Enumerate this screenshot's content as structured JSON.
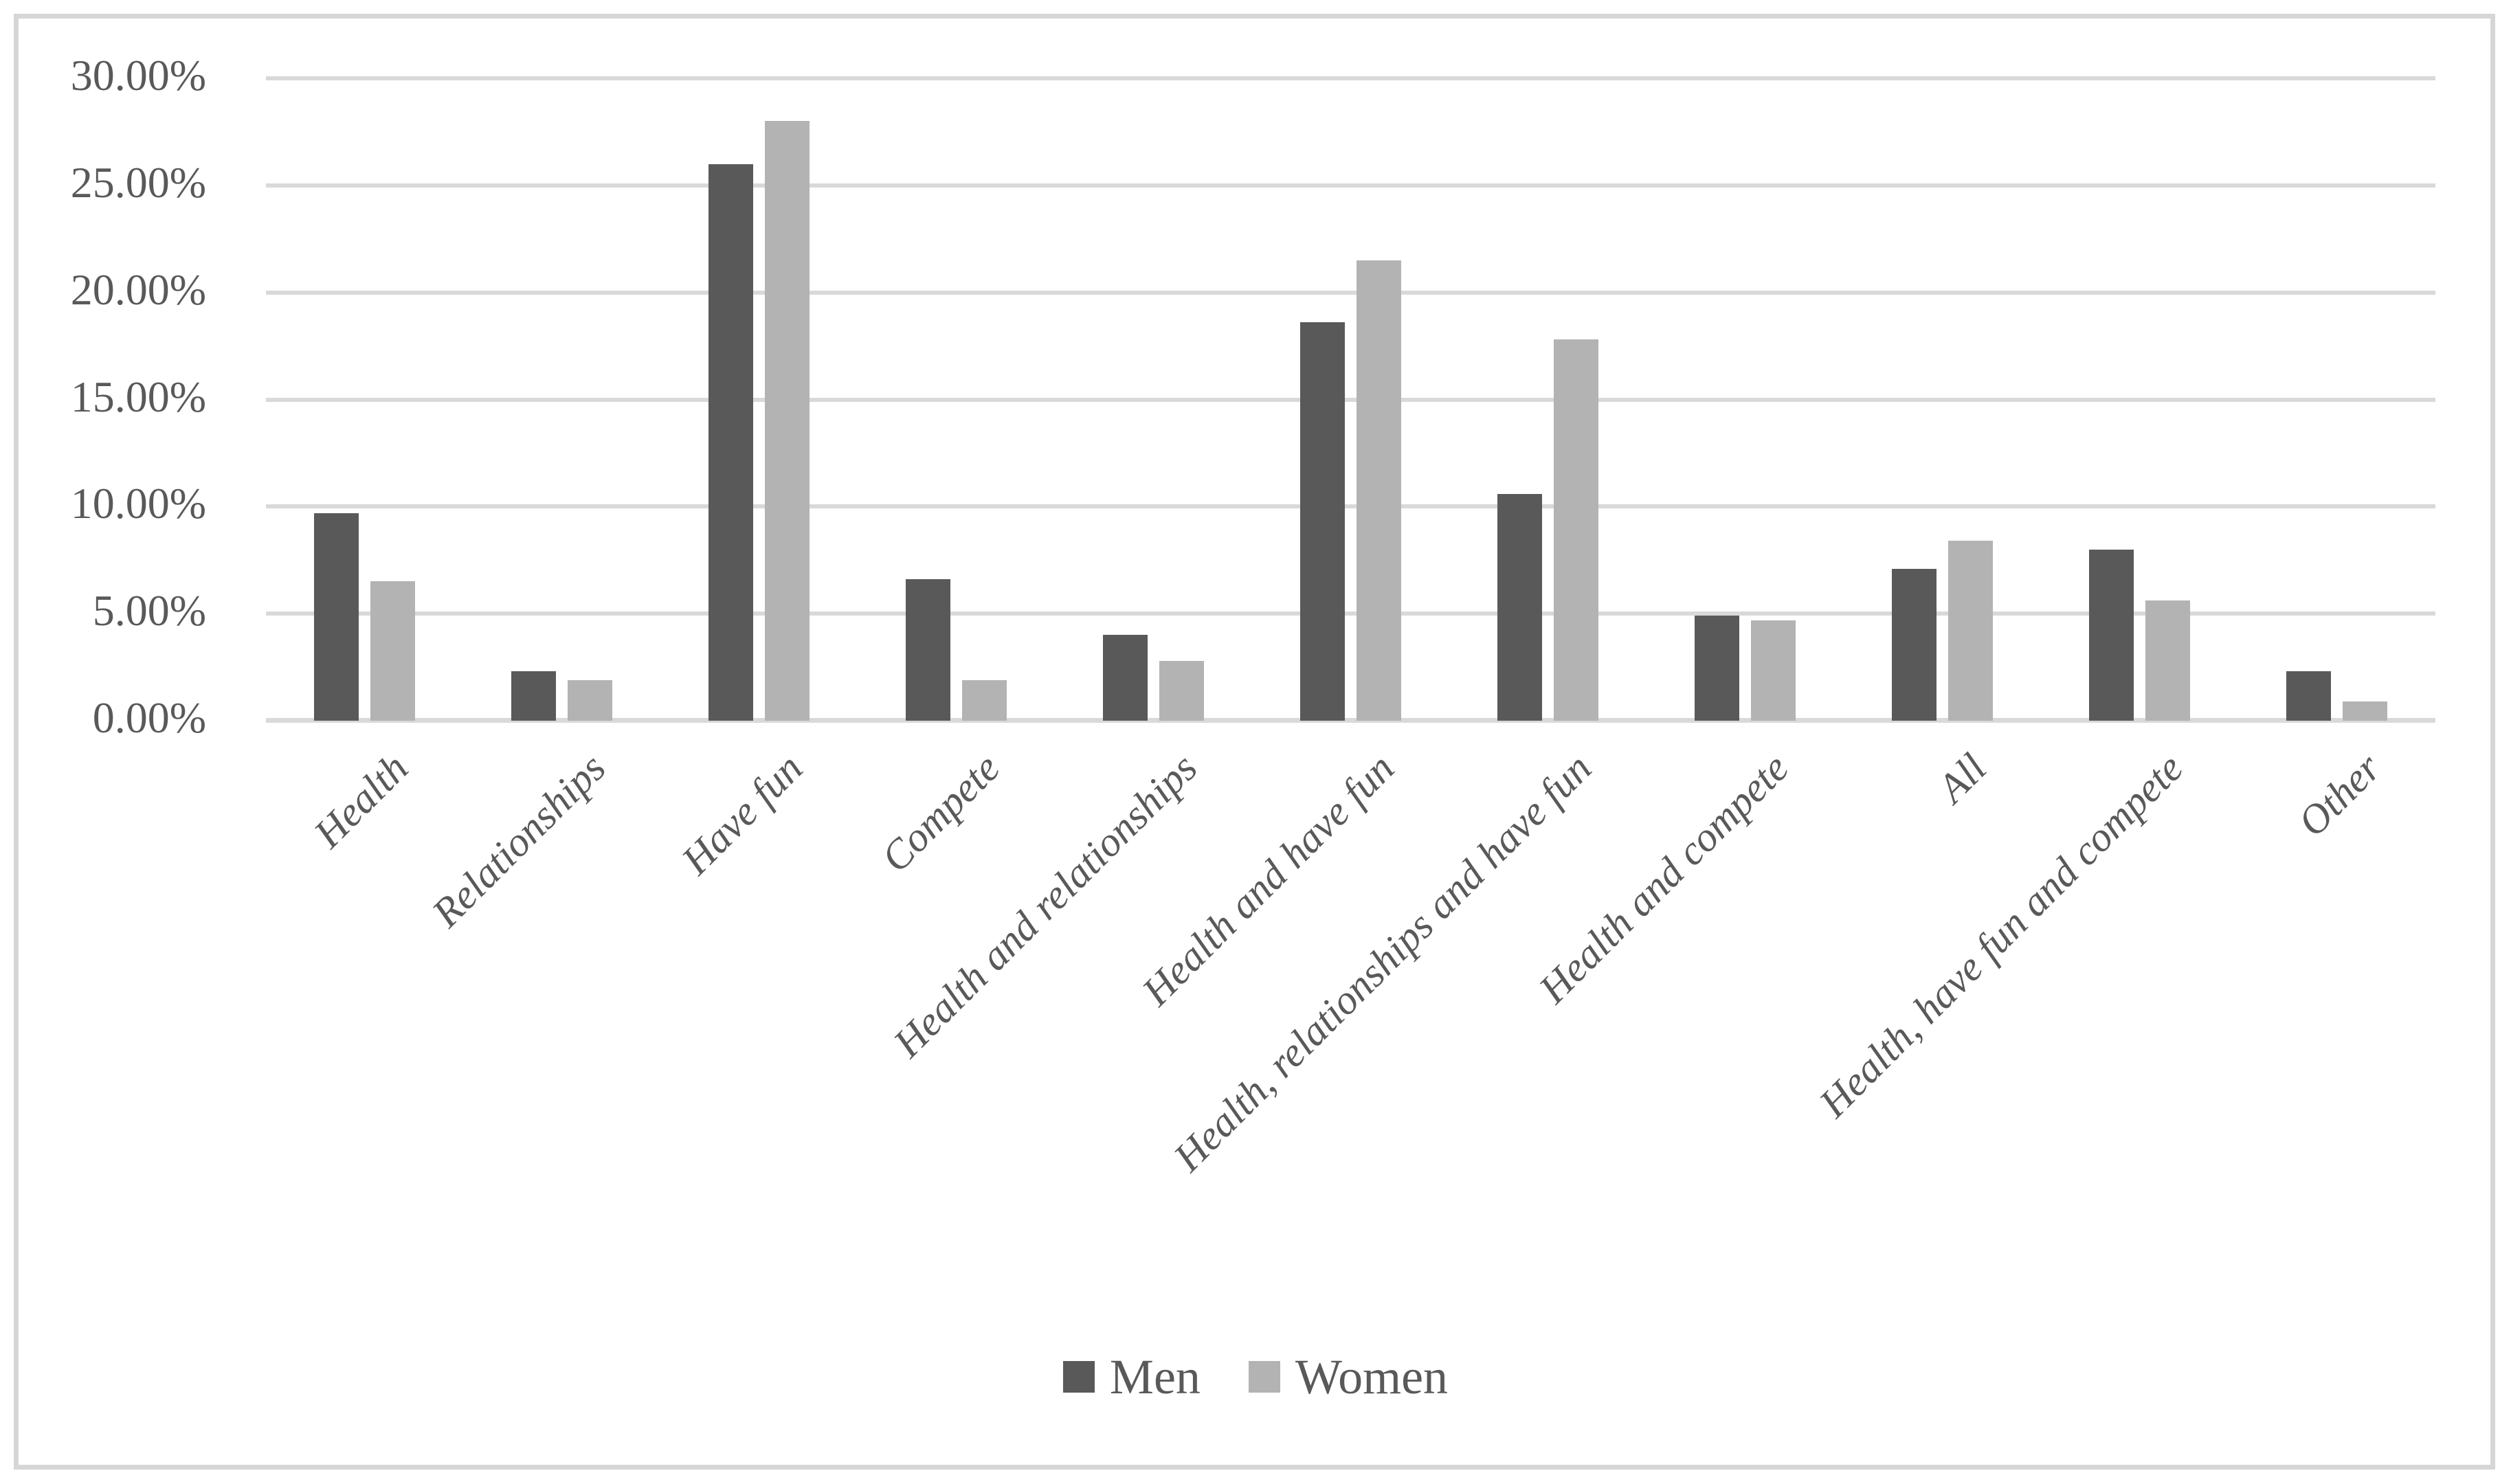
{
  "chart_data": {
    "type": "bar",
    "title": "",
    "xlabel": "",
    "ylabel": "",
    "categories": [
      "Health",
      "Relationships",
      "Have fun",
      "Compete",
      "Health and relationships",
      "Health and have fun",
      "Health, relationships and have fun",
      "Health and compete",
      "All",
      "Health, have fun and compete",
      "Other"
    ],
    "series": [
      {
        "name": "Men",
        "color": "#595959",
        "values": [
          9.7,
          2.3,
          26.0,
          6.6,
          4.0,
          18.6,
          10.6,
          4.9,
          7.1,
          8.0,
          2.3
        ]
      },
      {
        "name": "Women",
        "color": "#b3b3b3",
        "values": [
          6.5,
          1.9,
          28.0,
          1.9,
          2.8,
          21.5,
          17.8,
          4.7,
          8.4,
          5.6,
          0.9
        ]
      }
    ],
    "y_axis": {
      "min": 0,
      "max": 30,
      "step": 5,
      "format": "percent",
      "tick_labels": [
        "0.00%",
        "5.00%",
        "10.00%",
        "15.00%",
        "20.00%",
        "25.00%",
        "30.00%"
      ]
    },
    "grid": true,
    "legend_position": "bottom",
    "style": {
      "gridline_color": "#d9d9d9",
      "axis_line_color": "#d9d9d9",
      "text_color": "#595959",
      "figure_border_color": "#d6d6d6",
      "background_color": "#ffffff",
      "x_label_rotation_deg": 45
    }
  }
}
